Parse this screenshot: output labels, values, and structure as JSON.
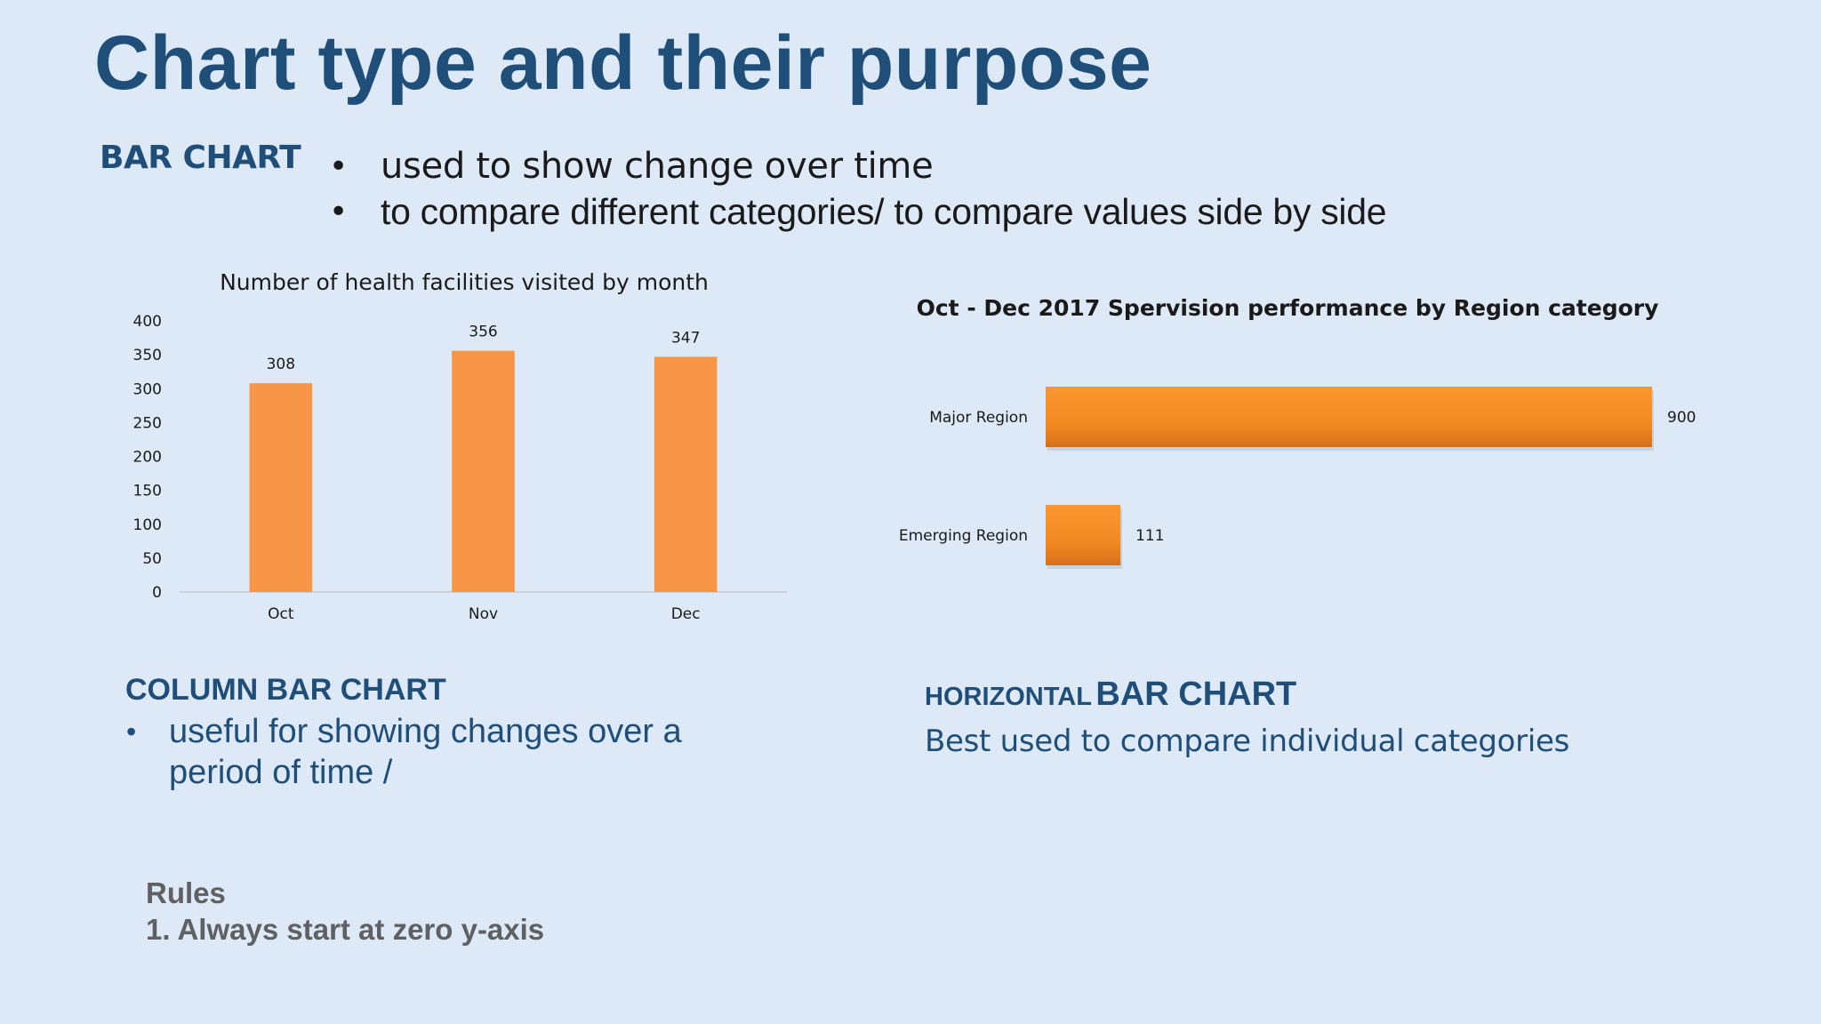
{
  "slide": {
    "title": "Chart type and their purpose",
    "bar_chart_heading": "BAR CHART",
    "bar_chart_bullets": [
      "used to show change over time",
      "to compare different categories/ to compare values side by side"
    ],
    "column_heading": "COLUMN BAR CHART",
    "column_bullets": [
      "useful for showing changes over a period of time /"
    ],
    "horizontal_heading_small": "HORIZONTAL",
    "horizontal_heading_big": "BAR CHART",
    "horizontal_description": "Best used to compare individual categories",
    "rules_title": "Rules",
    "rules": [
      "1. Always start at zero y-axis"
    ],
    "bullet_glyph": "•"
  },
  "chart_data": [
    {
      "type": "bar",
      "orientation": "vertical",
      "title": "Number of health facilities visited  by month",
      "categories": [
        "Oct",
        "Nov",
        "Dec"
      ],
      "values": [
        308,
        356,
        347
      ],
      "data_labels": [
        "308",
        "356",
        "347"
      ],
      "ylim": [
        0,
        400
      ],
      "y_ticks": [
        "0",
        "50",
        "100",
        "150",
        "200",
        "250",
        "300",
        "350",
        "400"
      ],
      "xlabel": "",
      "ylabel": "",
      "grid": false,
      "bar_color": "#f79646"
    },
    {
      "type": "bar",
      "orientation": "horizontal",
      "title": "Oct - Dec 2017 Spervision performance by Region category",
      "categories": [
        "Major Region",
        "Emerging Region"
      ],
      "values": [
        900,
        111
      ],
      "data_labels": [
        "900",
        "111"
      ],
      "xlim": [
        0,
        900
      ],
      "grid": false,
      "bar_color": "#f28a23"
    }
  ]
}
